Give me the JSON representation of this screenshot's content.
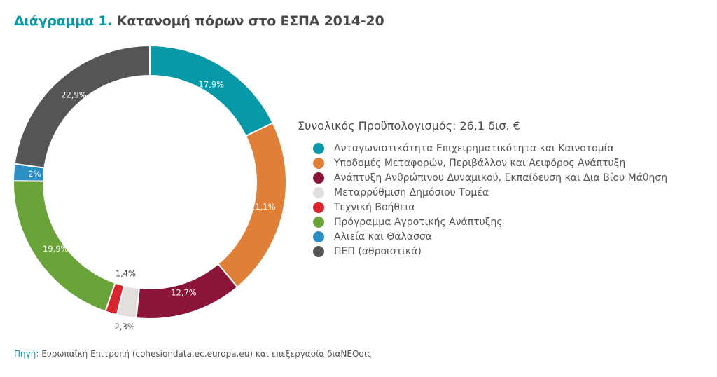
{
  "title": {
    "prefix": "Διάγραμμα 1.",
    "text": "Κατανομή πόρων στο ΕΣΠΑ 2014-20"
  },
  "source": {
    "label": "Πηγή:",
    "text": "Ευρωπαϊκή Επιτροπή (cohesiondata.ec.europa.eu) και επεξεργασία διαΝΕΟσις"
  },
  "chart_data": {
    "type": "pie",
    "variant": "donut",
    "title": "Κατανομή πόρων στο ΕΣΠΑ 2014-20",
    "subtitle": "Συνολικός Προϋπολογισμός: 26,1 δισ. €",
    "legend_position": "right",
    "slices": [
      {
        "name": "Ανταγωνιστικότητα Επιχειρηματικότητα και Καινοτομία",
        "value": 17.9,
        "label": "17,9%",
        "color": "#0899a8",
        "label_pos": "ring"
      },
      {
        "name": "Υποδομές Μεταφορών, Περιβάλλον και Αειφόρος Ανάπτυξη",
        "value": 21.1,
        "label": "21,1%",
        "color": "#e07f37",
        "label_pos": "ring"
      },
      {
        "name": "Ανάπτυξη Ανθρώπινου Δυναμικού, Εκπαίδευση και Δια Βίου Μάθηση",
        "value": 12.7,
        "label": "12,7%",
        "color": "#8b1538",
        "label_pos": "ring"
      },
      {
        "name": "Μεταρρύθμιση Δημόσιου Τομέα",
        "value": 2.3,
        "label": "2,3%",
        "color": "#e3dedb",
        "label_pos": "outside"
      },
      {
        "name": "Τεχνική Βοήθεια",
        "value": 1.4,
        "label": "1,4%",
        "color": "#d8262e",
        "label_pos": "inside"
      },
      {
        "name": "Πρόγραμμα Αγροτικής Ανάπτυξης",
        "value": 19.9,
        "label": "19,9%",
        "color": "#6aa33a",
        "label_pos": "ring"
      },
      {
        "name": "Αλιεία και Θάλασσα",
        "value": 2,
        "label": "2%",
        "color": "#2b8fc4",
        "label_pos": "ring"
      },
      {
        "name": "ΠΕΠ (αθροιστικά)",
        "value": 22.9,
        "label": "22,9%",
        "color": "#555557",
        "label_pos": "ring"
      }
    ]
  }
}
